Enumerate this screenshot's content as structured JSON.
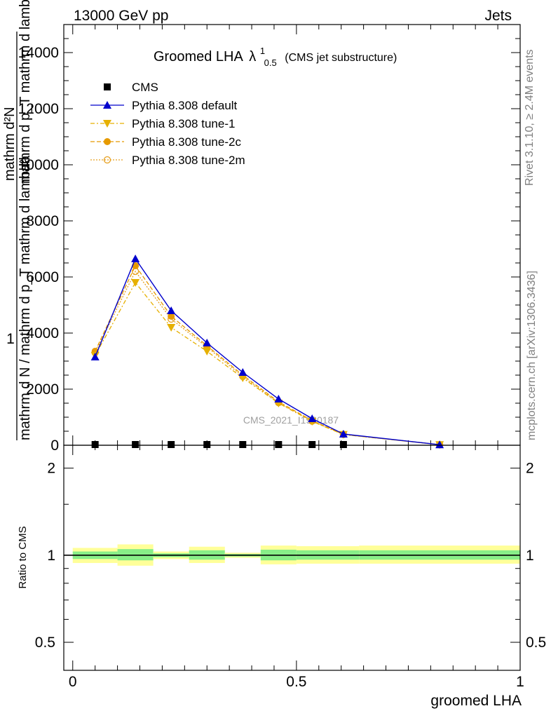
{
  "header": {
    "left": "13000 GeV pp",
    "right": "Jets"
  },
  "side_labels": {
    "rivet": "Rivet 3.1.10, ≥ 2.4M events",
    "mcplots": "mcplots.cern.ch [arXiv:1306.3436]"
  },
  "main_plot": {
    "title": "Groomed LHA",
    "title_symbol": "λ",
    "title_sup": "1",
    "title_sub": "0.5",
    "title_note": "(CMS jet substructure)",
    "ylabel_numerator": "1",
    "ylabel_denominator": "mathrm d N / mathrm d p_T mathrm d lambda",
    "ylabel_overlay_1": "mathrm d²N",
    "ylabel_overlay_2": "mathrm d p_T mathrm d lambda",
    "watermark": "CMS_2021_I1920187",
    "yticks": [
      "0",
      "2000",
      "4000",
      "6000",
      "8000",
      "10000",
      "12000",
      "14000"
    ]
  },
  "ratio_plot": {
    "ylabel": "Ratio to CMS",
    "yticks": [
      "0.5",
      "1",
      "2"
    ],
    "xlabel": "groomed LHA",
    "xticks": [
      "0",
      "0.5",
      "1"
    ]
  },
  "legend": [
    {
      "label": "CMS",
      "color": "#000000",
      "marker": "square",
      "dash": ""
    },
    {
      "label": "Pythia 8.308 default",
      "color": "#0000cc",
      "marker": "triangle-up",
      "dash": ""
    },
    {
      "label": "Pythia 8.308 tune-1",
      "color": "#e6b000",
      "marker": "triangle-down",
      "dash": "6,3,2,3"
    },
    {
      "label": "Pythia 8.308 tune-2c",
      "color": "#e69a00",
      "marker": "circle",
      "dash": "6,3"
    },
    {
      "label": "Pythia 8.308 tune-2m",
      "color": "#e6a020",
      "marker": "circle-open",
      "dash": "2,2"
    }
  ],
  "chart_data": {
    "type": "line",
    "x": [
      0.05,
      0.14,
      0.22,
      0.3,
      0.38,
      0.46,
      0.535,
      0.605,
      0.82
    ],
    "ylim": [
      0,
      15000
    ],
    "xlim": [
      -0.02,
      1.0
    ],
    "series": [
      {
        "name": "CMS",
        "values": [
          10,
          10,
          10,
          10,
          10,
          10,
          10,
          10,
          10
        ]
      },
      {
        "name": "Pythia 8.308 default",
        "values": [
          3150,
          6650,
          4800,
          3650,
          2600,
          1650,
          950,
          400,
          20
        ]
      },
      {
        "name": "Pythia 8.308 tune-1",
        "values": [
          3200,
          5800,
          4200,
          3350,
          2400,
          1500,
          850,
          380,
          20
        ]
      },
      {
        "name": "Pythia 8.308 tune-2c",
        "values": [
          3350,
          6400,
          4600,
          3550,
          2500,
          1550,
          880,
          390,
          20
        ]
      },
      {
        "name": "Pythia 8.308 tune-2m",
        "values": [
          3300,
          6200,
          4500,
          3500,
          2450,
          1520,
          860,
          385,
          20
        ]
      }
    ],
    "ratio": {
      "ylim": [
        0.4,
        2.4
      ],
      "log_scale": true,
      "bins": [
        {
          "lo": 0.0,
          "hi": 0.1,
          "inner": [
            0.97,
            1.03
          ],
          "outer": [
            0.94,
            1.06
          ]
        },
        {
          "lo": 0.1,
          "hi": 0.18,
          "inner": [
            0.96,
            1.05
          ],
          "outer": [
            0.92,
            1.09
          ]
        },
        {
          "lo": 0.18,
          "hi": 0.26,
          "inner": [
            0.985,
            1.015
          ],
          "outer": [
            0.97,
            1.03
          ]
        },
        {
          "lo": 0.26,
          "hi": 0.34,
          "inner": [
            0.965,
            1.04
          ],
          "outer": [
            0.94,
            1.07
          ]
        },
        {
          "lo": 0.34,
          "hi": 0.42,
          "inner": [
            0.99,
            1.01
          ],
          "outer": [
            0.98,
            1.02
          ]
        },
        {
          "lo": 0.42,
          "hi": 0.5,
          "inner": [
            0.96,
            1.045
          ],
          "outer": [
            0.93,
            1.08
          ]
        },
        {
          "lo": 0.5,
          "hi": 0.64,
          "inner": [
            0.965,
            1.04
          ],
          "outer": [
            0.935,
            1.075
          ]
        },
        {
          "lo": 0.64,
          "hi": 1.0,
          "inner": [
            0.965,
            1.04
          ],
          "outer": [
            0.935,
            1.08
          ]
        }
      ]
    }
  }
}
